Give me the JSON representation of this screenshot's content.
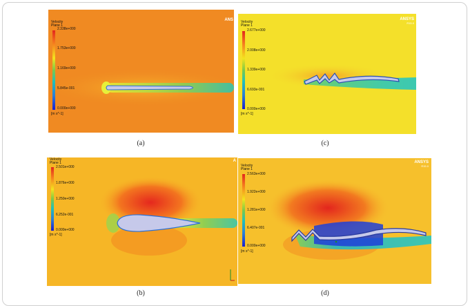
{
  "panels": {
    "a": {
      "caption": "(a)",
      "legend_title": "Velocity",
      "legend_plane": "Plane 1",
      "ticks": [
        "2.338e+000",
        "1.753e+000",
        "1.169e+000",
        "5.845e-001",
        "0.000e+000"
      ],
      "unit": "[m s^-1]",
      "brand": "ANS"
    },
    "b": {
      "caption": "(b)",
      "legend_title": "Velocity",
      "legend_plane": "Plane 1",
      "ticks": [
        "2.501e+000",
        "1.876e+000",
        "1.250e+000",
        "6.252e-001",
        "0.000e+000"
      ],
      "unit": "[m s^-1]",
      "brand": "A"
    },
    "c": {
      "caption": "(c)",
      "legend_title": "Velocity",
      "legend_plane": "Plane 1",
      "ticks": [
        "2.677e+000",
        "2.008e+000",
        "1.339e+000",
        "6.693e-001",
        "0.000e+000"
      ],
      "unit": "[m s^-1]",
      "brand": "ANSYS",
      "brand_sub": "R15.0"
    },
    "d": {
      "caption": "(d)",
      "legend_title": "Velocity",
      "legend_plane": "Plane 1",
      "ticks": [
        "2.563e+000",
        "1.922e+000",
        "1.281e+000",
        "6.407e-001",
        "0.000e+000"
      ],
      "unit": "[m s^-1]",
      "brand": "ANSYS",
      "brand_sub": "R15.0"
    }
  },
  "colors": {
    "freestream_a": "#f08a22",
    "freestream_b": "#f6b626",
    "freestream_c": "#f4e02a",
    "freestream_d": "#f6c02c",
    "wake": "#22c8b0",
    "body": "#c6c9ea"
  }
}
